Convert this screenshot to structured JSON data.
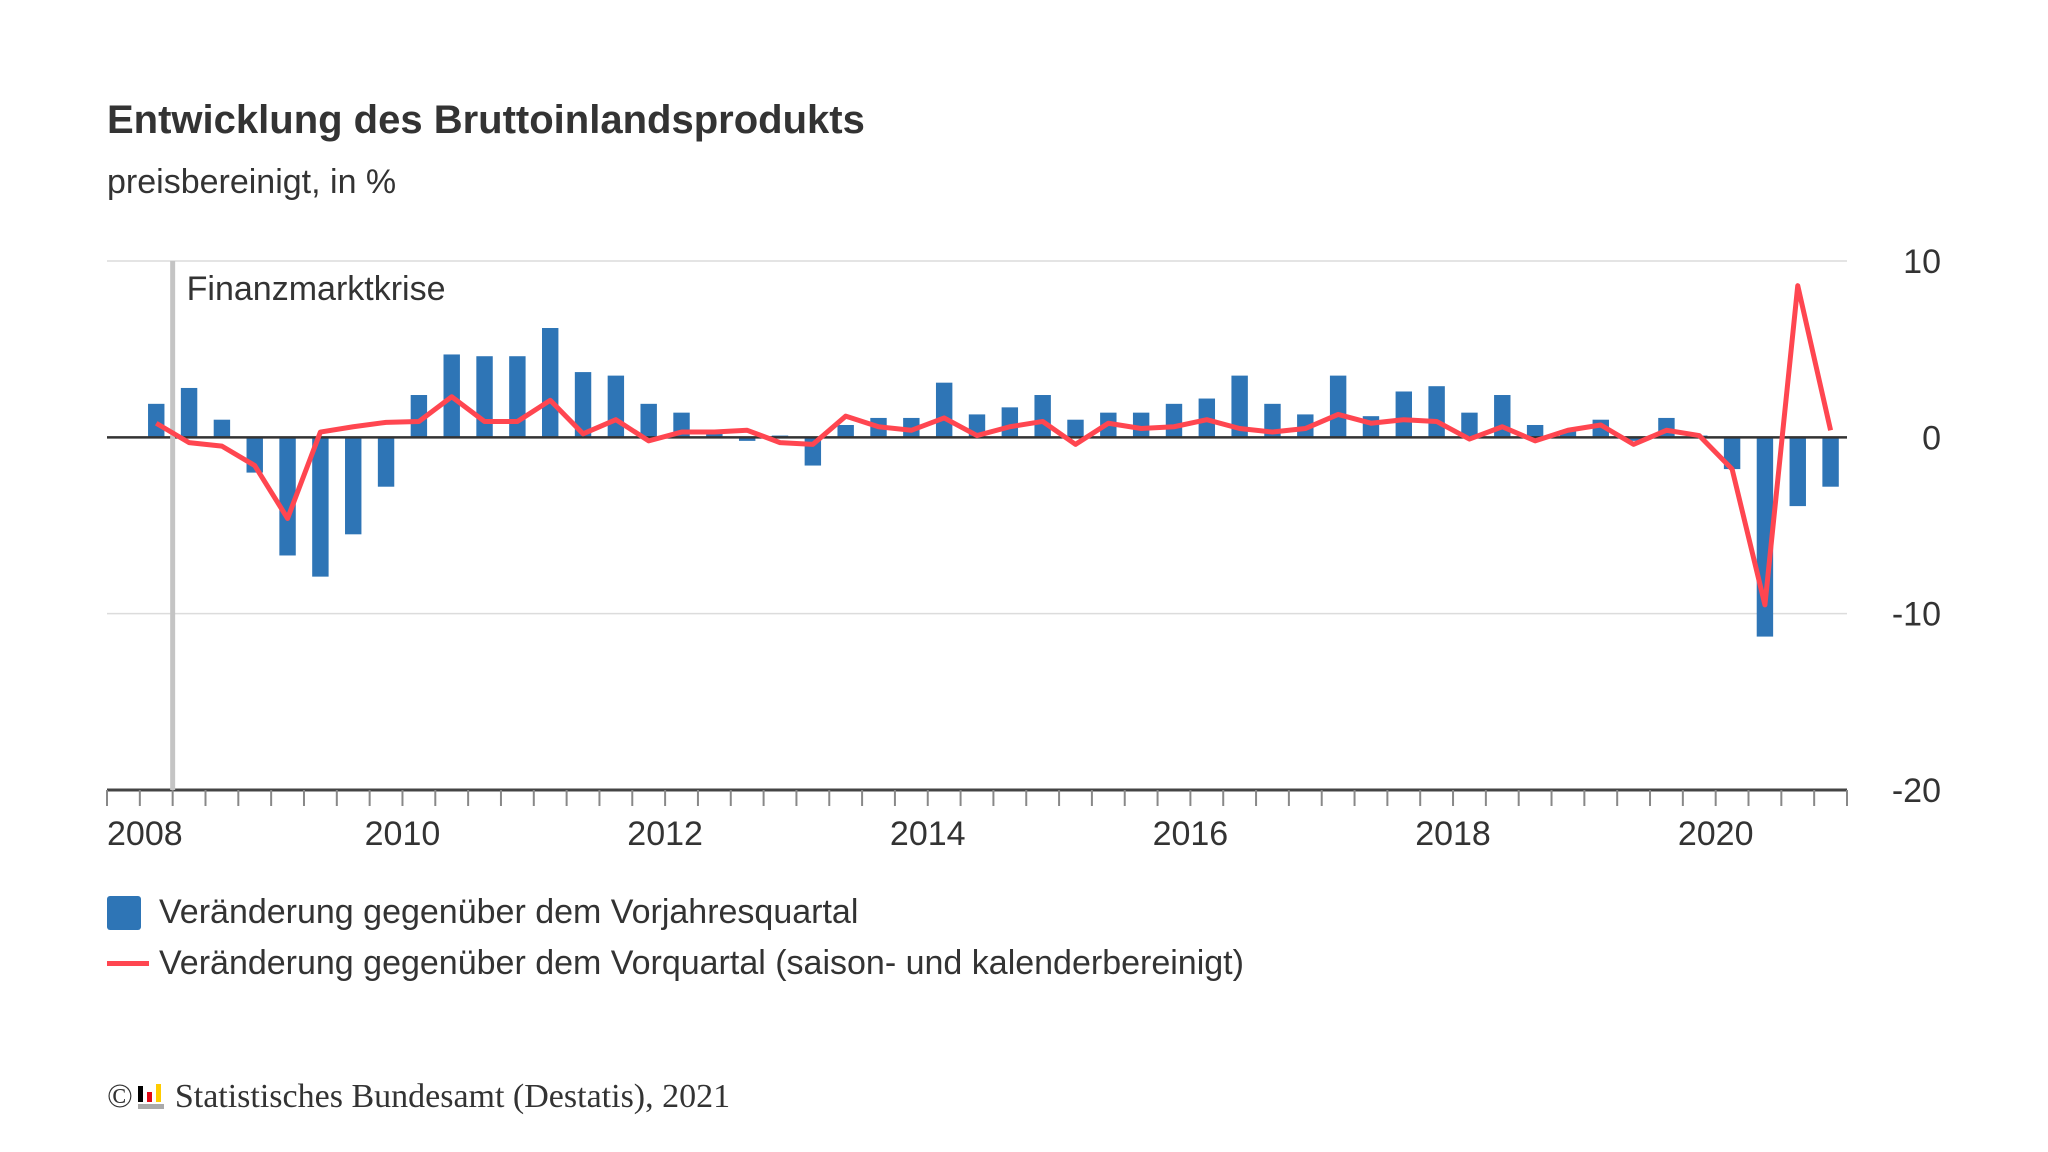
{
  "title": "Entwicklung des Bruttoinlandsprodukts",
  "subtitle": "preisbereinigt, in %",
  "footer": {
    "copyright": "©",
    "text": "Statistisches Bundesamt (Destatis), 2021"
  },
  "colors": {
    "bars": "#2e75b6",
    "line": "#ff4650",
    "annotation": "#c4c4c4"
  },
  "chart_data": {
    "type": "bar+line",
    "x_unit": "quarter",
    "x": [
      "2008-Q1",
      "2008-Q2",
      "2008-Q3",
      "2008-Q4",
      "2009-Q1",
      "2009-Q2",
      "2009-Q3",
      "2009-Q4",
      "2010-Q1",
      "2010-Q2",
      "2010-Q3",
      "2010-Q4",
      "2011-Q1",
      "2011-Q2",
      "2011-Q3",
      "2011-Q4",
      "2012-Q1",
      "2012-Q2",
      "2012-Q3",
      "2012-Q4",
      "2013-Q1",
      "2013-Q2",
      "2013-Q3",
      "2013-Q4",
      "2014-Q1",
      "2014-Q2",
      "2014-Q3",
      "2014-Q4",
      "2015-Q1",
      "2015-Q2",
      "2015-Q3",
      "2015-Q4",
      "2016-Q1",
      "2016-Q2",
      "2016-Q3",
      "2016-Q4",
      "2017-Q1",
      "2017-Q2",
      "2017-Q3",
      "2017-Q4",
      "2018-Q1",
      "2018-Q2",
      "2018-Q3",
      "2018-Q4",
      "2019-Q1",
      "2019-Q2",
      "2019-Q3",
      "2019-Q4",
      "2020-Q1",
      "2020-Q2",
      "2020-Q3",
      "2020-Q4"
    ],
    "series": [
      {
        "name": "Veränderung gegenüber dem Vorjahresquartal",
        "type": "bar",
        "values": [
          1.9,
          2.8,
          1.0,
          -2.0,
          -6.7,
          -7.9,
          -5.5,
          -2.8,
          2.4,
          4.7,
          4.6,
          4.6,
          6.2,
          3.7,
          3.5,
          1.9,
          1.4,
          0.3,
          -0.2,
          0.1,
          -1.6,
          0.7,
          1.1,
          1.1,
          3.1,
          1.3,
          1.7,
          2.4,
          1.0,
          1.4,
          1.4,
          1.9,
          2.2,
          3.5,
          1.9,
          1.3,
          3.5,
          1.2,
          2.6,
          2.9,
          1.4,
          2.4,
          0.7,
          0.4,
          1.0,
          -0.2,
          1.1,
          0.1,
          -1.8,
          -11.3,
          -3.9,
          -2.8
        ]
      },
      {
        "name": "Veränderung gegenüber dem Vorquartal (saison- und kalenderbereinigt)",
        "type": "line",
        "values": [
          0.8,
          -0.3,
          -0.5,
          -1.6,
          -4.6,
          0.3,
          0.6,
          0.85,
          0.9,
          2.3,
          0.9,
          0.9,
          2.1,
          0.2,
          1.0,
          -0.2,
          0.3,
          0.3,
          0.4,
          -0.3,
          -0.4,
          1.2,
          0.6,
          0.4,
          1.1,
          0.1,
          0.6,
          0.9,
          -0.4,
          0.8,
          0.5,
          0.6,
          1.0,
          0.5,
          0.3,
          0.5,
          1.3,
          0.8,
          1.0,
          0.9,
          -0.1,
          0.6,
          -0.2,
          0.4,
          0.7,
          -0.4,
          0.4,
          0.1,
          -1.8,
          -9.5,
          8.6,
          0.4
        ]
      }
    ],
    "x_tick_labels": [
      "2008",
      "2010",
      "2012",
      "2014",
      "2016",
      "2018",
      "2020"
    ],
    "y_tick_labels": [
      "10",
      "0",
      "-10",
      "-20"
    ],
    "ylim": [
      -20,
      10
    ],
    "y_axis_side": "right",
    "grid": true,
    "legend_placement": "bottom-left",
    "annotation": {
      "label": "Finanzmarktkrise",
      "at": "2008-Q2"
    }
  },
  "legend": {
    "bar_label": "Veränderung gegenüber dem Vorjahresquartal",
    "line_label": "Veränderung gegenüber dem Vorquartal (saison- und kalenderbereinigt)"
  }
}
